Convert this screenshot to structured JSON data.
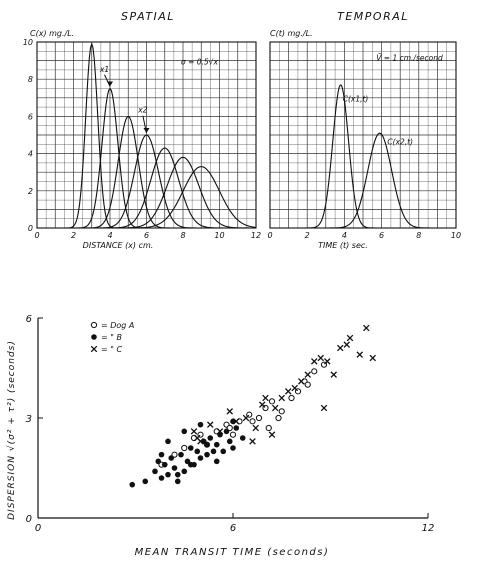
{
  "chart_data": [
    {
      "type": "line",
      "title": "SPATIAL",
      "ylabel": "C(x) mg./L.",
      "xlabel": "DISTANCE (x) cm.",
      "xlim": [
        0,
        12
      ],
      "ylim": [
        0,
        10
      ],
      "x_ticks": [
        "0",
        "2",
        "4",
        "6",
        "8",
        "10",
        "12"
      ],
      "y_ticks": [
        "0",
        "2",
        "4",
        "6",
        "8",
        "10"
      ],
      "grid": true,
      "series": [
        {
          "mean": 3.0,
          "peak": 9.9
        },
        {
          "mean": 4.0,
          "peak": 7.5
        },
        {
          "mean": 5.0,
          "peak": 6.0
        },
        {
          "mean": 6.0,
          "peak": 5.0
        },
        {
          "mean": 7.0,
          "peak": 4.3
        },
        {
          "mean": 8.0,
          "peak": 3.8
        },
        {
          "mean": 9.0,
          "peak": 3.3
        }
      ],
      "annotations": [
        {
          "text": "σ = 0.5√x",
          "x": 8.9,
          "y": 8.8
        },
        {
          "text": "x1",
          "x": 3.7,
          "y": 8.4,
          "arrow_to": [
            4.0,
            7.5
          ]
        },
        {
          "text": "x2",
          "x": 5.8,
          "y": 6.2,
          "arrow_to": [
            6.0,
            5.0
          ]
        }
      ]
    },
    {
      "type": "line",
      "title": "TEMPORAL",
      "ylabel": "C(t) mg./L.",
      "xlabel": "TIME (t) sec.",
      "xlim": [
        0,
        10
      ],
      "ylim": [
        0,
        10
      ],
      "x_ticks": [
        "0",
        "2",
        "4",
        "6",
        "8",
        "10"
      ],
      "y_ticks": [],
      "grid": true,
      "series": [
        {
          "mean": 3.8,
          "peak": 7.7
        },
        {
          "mean": 5.9,
          "peak": 5.1
        }
      ],
      "annotations": [
        {
          "text": "V̄ = 1 cm./second",
          "x": 7.5,
          "y": 9.0
        },
        {
          "text": "C(x1,t)",
          "x": 4.6,
          "y": 6.8
        },
        {
          "text": "C(x2,t)",
          "x": 7.0,
          "y": 4.5
        }
      ]
    },
    {
      "type": "scatter",
      "title": "",
      "ylabel": "DISPERSION √(σ² + τ²)  (seconds)",
      "xlabel": "MEAN TRANSIT TIME   (seconds)",
      "xlim": [
        0,
        12
      ],
      "ylim": [
        0,
        6
      ],
      "x_ticks": [
        "0",
        "6",
        "12"
      ],
      "y_ticks": [
        "0",
        "3",
        "6"
      ],
      "grid": false,
      "legend": [
        "○ = Dog  A",
        "● =   \"   B",
        "× =   \"   C"
      ],
      "series": [
        {
          "name": "A",
          "marker": "open-circle",
          "x": [
            3.8,
            4.2,
            4.5,
            4.8,
            5.0,
            5.2,
            5.5,
            5.8,
            6.0,
            6.2,
            6.5,
            6.8,
            7.0,
            7.2,
            7.5,
            7.8,
            8.0,
            8.2,
            8.5,
            8.8,
            7.1,
            7.4,
            8.3,
            6.6,
            5.9
          ],
          "y": [
            1.6,
            1.9,
            2.1,
            2.4,
            2.5,
            2.2,
            2.6,
            2.8,
            2.5,
            2.9,
            3.1,
            3.0,
            3.3,
            3.5,
            3.2,
            3.6,
            3.8,
            4.1,
            4.4,
            4.6,
            2.7,
            3.0,
            4.0,
            2.9,
            2.7
          ]
        },
        {
          "name": "B",
          "marker": "filled-circle",
          "x": [
            2.9,
            3.3,
            3.6,
            3.8,
            3.9,
            4.0,
            4.1,
            4.2,
            4.3,
            4.4,
            4.5,
            4.6,
            4.7,
            4.8,
            4.9,
            5.0,
            5.1,
            5.2,
            5.3,
            5.4,
            5.5,
            5.6,
            5.7,
            5.8,
            5.9,
            6.0,
            6.1,
            6.3,
            3.7,
            4.0,
            4.5,
            5.0,
            5.5,
            6.0,
            4.3,
            3.8,
            5.2,
            4.7
          ],
          "y": [
            1.0,
            1.1,
            1.4,
            1.2,
            1.6,
            1.3,
            1.8,
            1.5,
            1.1,
            1.9,
            1.4,
            1.7,
            2.1,
            1.6,
            2.0,
            1.8,
            2.3,
            1.9,
            2.4,
            2.0,
            2.2,
            2.5,
            2.0,
            2.6,
            2.3,
            2.1,
            2.7,
            2.4,
            1.7,
            2.3,
            2.6,
            2.8,
            1.7,
            2.9,
            1.3,
            1.9,
            2.2,
            1.6
          ]
        },
        {
          "name": "C",
          "marker": "cross",
          "x": [
            4.8,
            5.0,
            5.3,
            5.6,
            5.9,
            6.1,
            6.4,
            6.7,
            6.9,
            7.0,
            7.3,
            7.5,
            7.7,
            7.9,
            8.1,
            8.3,
            8.5,
            8.7,
            8.9,
            9.1,
            9.3,
            9.6,
            9.9,
            10.1,
            10.3,
            6.6,
            7.2,
            8.8,
            9.5,
            4.9
          ],
          "y": [
            2.6,
            2.3,
            2.8,
            2.6,
            3.2,
            2.9,
            3.0,
            2.7,
            3.4,
            3.6,
            3.3,
            3.6,
            3.8,
            3.9,
            4.1,
            4.3,
            4.7,
            4.8,
            4.7,
            4.3,
            5.1,
            5.4,
            4.9,
            5.7,
            4.8,
            2.3,
            2.5,
            3.3,
            5.2,
            2.4
          ]
        }
      ]
    }
  ]
}
